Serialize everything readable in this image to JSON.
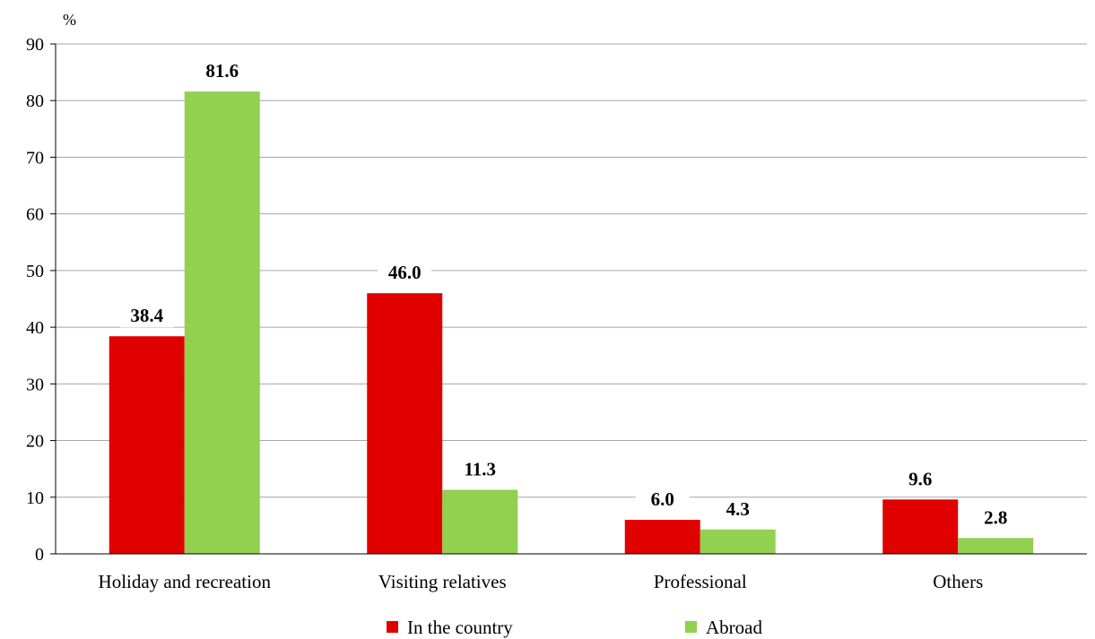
{
  "chart_data": {
    "type": "bar",
    "unit_label": "%",
    "categories": [
      "Holiday and recreation",
      "Visiting relatives",
      "Professional",
      "Others"
    ],
    "series": [
      {
        "name": "In the country",
        "color": "#e00000",
        "values": [
          38.4,
          46.0,
          6.0,
          9.6
        ],
        "labels": [
          "38.4",
          "46.0",
          "6.0",
          "9.6"
        ]
      },
      {
        "name": "Abroad",
        "color": "#92d050",
        "values": [
          81.6,
          11.3,
          4.3,
          2.8
        ],
        "labels": [
          "81.6",
          "11.3",
          "4.3",
          "2.8"
        ]
      }
    ],
    "y_ticks": [
      "0",
      "10",
      "20",
      "30",
      "40",
      "50",
      "60",
      "70",
      "80",
      "90"
    ],
    "ylim": [
      0,
      90
    ],
    "grid": true,
    "legend_position": "bottom",
    "xlabel": "",
    "ylabel": ""
  }
}
